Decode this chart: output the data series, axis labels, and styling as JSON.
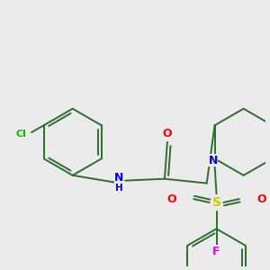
{
  "background_color": "#ebebeb",
  "bond_color": "#2d6e2d",
  "atom_colors": {
    "O": "#ff0000",
    "N": "#0000ee",
    "S": "#cccc00",
    "Cl": "#00bb00",
    "F": "#ee00ee",
    "H": "#0000ee"
  },
  "figsize": [
    3.0,
    3.0
  ],
  "dpi": 100,
  "lw": 1.4
}
